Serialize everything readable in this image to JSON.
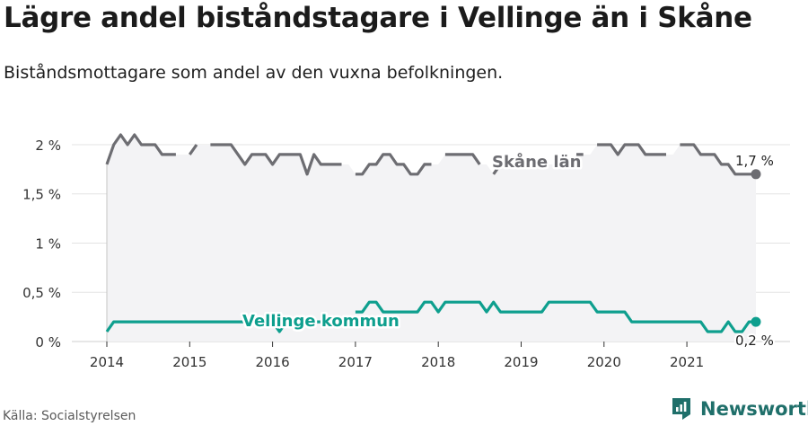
{
  "title": "Lägre andel biståndstagare i Vellinge än i Skåne",
  "subtitle": "Biståndsmottagare som andel av den vuxna befolkningen.",
  "source": "Källa: Socialstyrelsen",
  "brand": {
    "name": "Newsworthy",
    "icon": "newsworthy-logo-icon",
    "color": "#1f6f6a"
  },
  "chart_data": {
    "type": "line",
    "x_ticks": [
      "2014",
      "2015",
      "2016",
      "2017",
      "2018",
      "2019",
      "2020",
      "2021"
    ],
    "y_ticks": [
      "0 %",
      "0,5 %",
      "1 %",
      "1,5 %",
      "2 %"
    ],
    "y_tick_values": [
      0,
      0.5,
      1,
      1.5,
      2
    ],
    "xlim": [
      "2014-01",
      "2021-11"
    ],
    "ylim": [
      0,
      2.1
    ],
    "grid": true,
    "series": [
      {
        "name": "Skåne län",
        "color": "#6d6d72",
        "end_label": "1,7 %",
        "points": [
          [
            "2014-01",
            1.8
          ],
          [
            "2014-02",
            2.0
          ],
          [
            "2014-03",
            2.1
          ],
          [
            "2014-04",
            2.0
          ],
          [
            "2014-05",
            2.1
          ],
          [
            "2014-06",
            2.0
          ],
          [
            "2014-07",
            2.0
          ],
          [
            "2014-08",
            2.0
          ],
          [
            "2014-09",
            1.9
          ],
          [
            "2014-10",
            1.9
          ],
          [
            "2014-11",
            1.9
          ],
          [
            "2014-12",
            null
          ],
          [
            "2015-01",
            1.9
          ],
          [
            "2015-02",
            2.0
          ],
          [
            "2015-03",
            null
          ],
          [
            "2015-04",
            2.0
          ],
          [
            "2015-05",
            2.0
          ],
          [
            "2015-06",
            2.0
          ],
          [
            "2015-07",
            2.0
          ],
          [
            "2015-08",
            1.9
          ],
          [
            "2015-09",
            1.8
          ],
          [
            "2015-10",
            1.9
          ],
          [
            "2015-11",
            1.9
          ],
          [
            "2015-12",
            1.9
          ],
          [
            "2016-01",
            1.8
          ],
          [
            "2016-02",
            1.9
          ],
          [
            "2016-03",
            1.9
          ],
          [
            "2016-04",
            1.9
          ],
          [
            "2016-05",
            1.9
          ],
          [
            "2016-06",
            1.7
          ],
          [
            "2016-07",
            1.9
          ],
          [
            "2016-08",
            1.8
          ],
          [
            "2016-09",
            1.8
          ],
          [
            "2016-10",
            1.8
          ],
          [
            "2016-11",
            1.8
          ],
          [
            "2016-12",
            null
          ],
          [
            "2017-01",
            1.7
          ],
          [
            "2017-02",
            1.7
          ],
          [
            "2017-03",
            1.8
          ],
          [
            "2017-04",
            1.8
          ],
          [
            "2017-05",
            1.9
          ],
          [
            "2017-06",
            1.9
          ],
          [
            "2017-07",
            1.8
          ],
          [
            "2017-08",
            1.8
          ],
          [
            "2017-09",
            1.7
          ],
          [
            "2017-10",
            1.7
          ],
          [
            "2017-11",
            1.8
          ],
          [
            "2017-12",
            1.8
          ],
          [
            "2018-01",
            null
          ],
          [
            "2018-02",
            1.9
          ],
          [
            "2018-03",
            1.9
          ],
          [
            "2018-04",
            1.9
          ],
          [
            "2018-05",
            1.9
          ],
          [
            "2018-06",
            1.9
          ],
          [
            "2018-07",
            1.8
          ],
          [
            "2018-08",
            null
          ],
          [
            "2018-09",
            1.7
          ],
          [
            "2018-10",
            1.8
          ],
          [
            "2018-11",
            1.8
          ],
          [
            "2018-12",
            1.8
          ],
          [
            "2019-01",
            null
          ],
          [
            "2019-02",
            1.8
          ],
          [
            "2019-03",
            null
          ],
          [
            "2019-04",
            null
          ],
          [
            "2019-05",
            null
          ],
          [
            "2019-06",
            null
          ],
          [
            "2019-07",
            null
          ],
          [
            "2019-08",
            null
          ],
          [
            "2019-09",
            1.9
          ],
          [
            "2019-10",
            1.9
          ],
          [
            "2019-11",
            null
          ],
          [
            "2019-12",
            2.0
          ],
          [
            "2020-01",
            2.0
          ],
          [
            "2020-02",
            2.0
          ],
          [
            "2020-03",
            1.9
          ],
          [
            "2020-04",
            2.0
          ],
          [
            "2020-05",
            2.0
          ],
          [
            "2020-06",
            2.0
          ],
          [
            "2020-07",
            1.9
          ],
          [
            "2020-08",
            1.9
          ],
          [
            "2020-09",
            1.9
          ],
          [
            "2020-10",
            1.9
          ],
          [
            "2020-11",
            null
          ],
          [
            "2020-12",
            2.0
          ],
          [
            "2021-01",
            2.0
          ],
          [
            "2021-02",
            2.0
          ],
          [
            "2021-03",
            1.9
          ],
          [
            "2021-04",
            1.9
          ],
          [
            "2021-05",
            1.9
          ],
          [
            "2021-06",
            1.8
          ],
          [
            "2021-07",
            1.8
          ],
          [
            "2021-08",
            1.7
          ],
          [
            "2021-09",
            1.7
          ],
          [
            "2021-10",
            1.7
          ],
          [
            "2021-11",
            1.7
          ]
        ]
      },
      {
        "name": "Vellinge kommun",
        "color": "#0e9f8e",
        "end_label": "0,2 %",
        "points": [
          [
            "2014-01",
            0.1
          ],
          [
            "2014-02",
            0.2
          ],
          [
            "2014-03",
            0.2
          ],
          [
            "2014-04",
            0.2
          ],
          [
            "2014-05",
            0.2
          ],
          [
            "2014-06",
            0.2
          ],
          [
            "2014-07",
            0.2
          ],
          [
            "2014-08",
            0.2
          ],
          [
            "2014-09",
            0.2
          ],
          [
            "2014-10",
            0.2
          ],
          [
            "2014-11",
            0.2
          ],
          [
            "2014-12",
            0.2
          ],
          [
            "2015-01",
            0.2
          ],
          [
            "2015-02",
            0.2
          ],
          [
            "2015-03",
            0.2
          ],
          [
            "2015-04",
            0.2
          ],
          [
            "2015-05",
            0.2
          ],
          [
            "2015-06",
            0.2
          ],
          [
            "2015-07",
            0.2
          ],
          [
            "2015-08",
            0.2
          ],
          [
            "2015-09",
            0.2
          ],
          [
            "2015-10",
            0.2
          ],
          [
            "2015-11",
            0.2
          ],
          [
            "2015-12",
            0.2
          ],
          [
            "2016-01",
            0.2
          ],
          [
            "2016-02",
            0.1
          ],
          [
            "2016-03",
            0.2
          ],
          [
            "2016-04",
            0.2
          ],
          [
            "2016-05",
            0.2
          ],
          [
            "2016-06",
            0.2
          ],
          [
            "2016-07",
            0.2
          ],
          [
            "2016-08",
            0.2
          ],
          [
            "2016-09",
            0.2
          ],
          [
            "2016-10",
            0.2
          ],
          [
            "2016-11",
            0.2
          ],
          [
            "2016-12",
            null
          ],
          [
            "2017-01",
            0.3
          ],
          [
            "2017-02",
            0.3
          ],
          [
            "2017-03",
            0.4
          ],
          [
            "2017-04",
            0.4
          ],
          [
            "2017-05",
            0.3
          ],
          [
            "2017-06",
            0.3
          ],
          [
            "2017-07",
            0.3
          ],
          [
            "2017-08",
            0.3
          ],
          [
            "2017-09",
            0.3
          ],
          [
            "2017-10",
            0.3
          ],
          [
            "2017-11",
            0.4
          ],
          [
            "2017-12",
            0.4
          ],
          [
            "2018-01",
            0.3
          ],
          [
            "2018-02",
            0.4
          ],
          [
            "2018-03",
            0.4
          ],
          [
            "2018-04",
            0.4
          ],
          [
            "2018-05",
            0.4
          ],
          [
            "2018-06",
            0.4
          ],
          [
            "2018-07",
            0.4
          ],
          [
            "2018-08",
            0.3
          ],
          [
            "2018-09",
            0.4
          ],
          [
            "2018-10",
            0.3
          ],
          [
            "2018-11",
            0.3
          ],
          [
            "2018-12",
            0.3
          ],
          [
            "2019-01",
            0.3
          ],
          [
            "2019-02",
            0.3
          ],
          [
            "2019-03",
            0.3
          ],
          [
            "2019-04",
            0.3
          ],
          [
            "2019-05",
            0.4
          ],
          [
            "2019-06",
            0.4
          ],
          [
            "2019-07",
            0.4
          ],
          [
            "2019-08",
            0.4
          ],
          [
            "2019-09",
            0.4
          ],
          [
            "2019-10",
            0.4
          ],
          [
            "2019-11",
            0.4
          ],
          [
            "2019-12",
            0.3
          ],
          [
            "2020-01",
            0.3
          ],
          [
            "2020-02",
            0.3
          ],
          [
            "2020-03",
            0.3
          ],
          [
            "2020-04",
            0.3
          ],
          [
            "2020-05",
            0.2
          ],
          [
            "2020-06",
            0.2
          ],
          [
            "2020-07",
            0.2
          ],
          [
            "2020-08",
            0.2
          ],
          [
            "2020-09",
            0.2
          ],
          [
            "2020-10",
            0.2
          ],
          [
            "2020-11",
            0.2
          ],
          [
            "2020-12",
            0.2
          ],
          [
            "2021-01",
            0.2
          ],
          [
            "2021-02",
            0.2
          ],
          [
            "2021-03",
            0.2
          ],
          [
            "2021-04",
            0.1
          ],
          [
            "2021-05",
            0.1
          ],
          [
            "2021-06",
            0.1
          ],
          [
            "2021-07",
            0.2
          ],
          [
            "2021-08",
            0.1
          ],
          [
            "2021-09",
            0.1
          ],
          [
            "2021-10",
            0.2
          ],
          [
            "2021-11",
            0.2
          ]
        ]
      }
    ]
  }
}
